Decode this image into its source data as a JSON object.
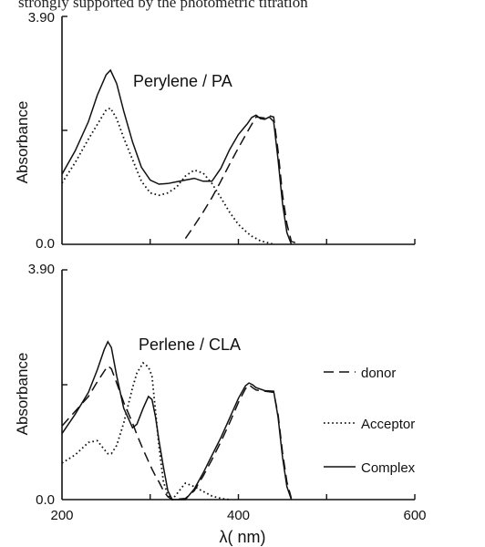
{
  "page_header": {
    "text": "strongly supported by the photometric titration"
  },
  "chart_data": [
    {
      "type": "line",
      "title": "Perylene / PA",
      "ylabel": "Absorbance",
      "xlim": [
        200,
        600
      ],
      "ylim": [
        0,
        3.9
      ],
      "y_ticks": [
        "0.0",
        "3.90"
      ],
      "x": [
        200,
        215,
        230,
        240,
        250,
        255,
        262,
        270,
        280,
        290,
        300,
        310,
        320,
        330,
        340,
        350,
        360,
        370,
        380,
        390,
        400,
        410,
        415,
        420,
        425,
        430,
        435,
        440,
        445,
        450,
        455,
        460,
        470,
        480
      ],
      "series": [
        {
          "name": "Donor",
          "style": "dashed",
          "values": [
            null,
            null,
            null,
            null,
            null,
            null,
            null,
            null,
            null,
            null,
            null,
            null,
            null,
            null,
            0.1,
            0.32,
            0.55,
            0.8,
            1.08,
            1.37,
            1.65,
            1.92,
            2.05,
            2.18,
            2.17,
            2.16,
            2.2,
            2.18,
            1.6,
            0.85,
            0.35,
            0.05,
            0.0,
            null
          ]
        },
        {
          "name": "Acceptor",
          "style": "dotted",
          "values": [
            1.05,
            1.4,
            1.8,
            2.05,
            2.3,
            2.33,
            2.15,
            1.82,
            1.45,
            1.08,
            0.88,
            0.84,
            0.88,
            0.98,
            1.17,
            1.27,
            1.22,
            1.04,
            0.8,
            0.55,
            0.34,
            0.2,
            0.14,
            0.1,
            0.06,
            0.04,
            0.02,
            0.0,
            null,
            null,
            null,
            null,
            null,
            null
          ]
        },
        {
          "name": "Complex",
          "style": "solid",
          "values": [
            1.2,
            1.6,
            2.1,
            2.55,
            2.9,
            2.98,
            2.75,
            2.28,
            1.75,
            1.32,
            1.1,
            1.03,
            1.04,
            1.07,
            1.1,
            1.13,
            1.08,
            1.08,
            1.3,
            1.62,
            1.88,
            2.06,
            2.17,
            2.21,
            2.15,
            2.14,
            2.18,
            2.1,
            1.45,
            0.7,
            0.2,
            0.0,
            null,
            null
          ]
        }
      ]
    },
    {
      "type": "line",
      "title": "Perlene / CLA",
      "xlabel": "λ( nm)",
      "ylabel": "Absorbance",
      "xlim": [
        200,
        600
      ],
      "ylim": [
        0,
        3.9
      ],
      "x_ticks": [
        "200",
        "400",
        "600"
      ],
      "y_ticks": [
        "0.0",
        "3.90"
      ],
      "x": [
        200,
        215,
        230,
        240,
        248,
        252,
        256,
        262,
        270,
        280,
        285,
        292,
        298,
        302,
        306,
        310,
        315,
        320,
        325,
        340,
        350,
        360,
        370,
        380,
        390,
        400,
        408,
        412,
        416,
        420,
        430,
        440,
        445,
        450,
        455,
        460
      ],
      "series": [
        {
          "name": "Donor",
          "style": "dashed",
          "values": [
            1.25,
            1.5,
            1.75,
            2.0,
            2.18,
            2.27,
            2.22,
            1.98,
            1.65,
            1.3,
            1.1,
            0.85,
            0.65,
            0.52,
            0.4,
            0.3,
            0.15,
            0.05,
            0.0,
            0.02,
            0.15,
            0.4,
            0.68,
            0.98,
            1.3,
            1.65,
            1.88,
            1.95,
            1.9,
            1.86,
            1.84,
            1.82,
            1.45,
            0.8,
            0.3,
            0.02
          ]
        },
        {
          "name": "Acceptor",
          "style": "dotted",
          "values": [
            0.62,
            0.76,
            0.97,
            1.0,
            0.85,
            0.78,
            0.78,
            0.92,
            1.3,
            1.9,
            2.15,
            2.32,
            2.25,
            2.1,
            1.5,
            0.9,
            0.3,
            0.08,
            0.0,
            0.28,
            0.22,
            0.14,
            0.06,
            0.02,
            0.0,
            null,
            null,
            null,
            null,
            null,
            null,
            null,
            null,
            null,
            null,
            null
          ]
        },
        {
          "name": "Complex",
          "style": "solid",
          "values": [
            1.12,
            1.45,
            1.82,
            2.2,
            2.55,
            2.68,
            2.58,
            2.1,
            1.55,
            1.22,
            1.28,
            1.55,
            1.75,
            1.7,
            1.4,
            1.0,
            0.55,
            0.15,
            0.0,
            0.0,
            0.18,
            0.45,
            0.75,
            1.05,
            1.38,
            1.72,
            1.93,
            1.98,
            1.95,
            1.9,
            1.85,
            1.84,
            1.4,
            0.72,
            0.22,
            0.0
          ]
        }
      ]
    }
  ],
  "legend": {
    "items": [
      {
        "label": "donor",
        "style": "dashed"
      },
      {
        "label": "Acceptor",
        "style": "dotted"
      },
      {
        "label": "Complex",
        "style": "solid"
      }
    ]
  }
}
